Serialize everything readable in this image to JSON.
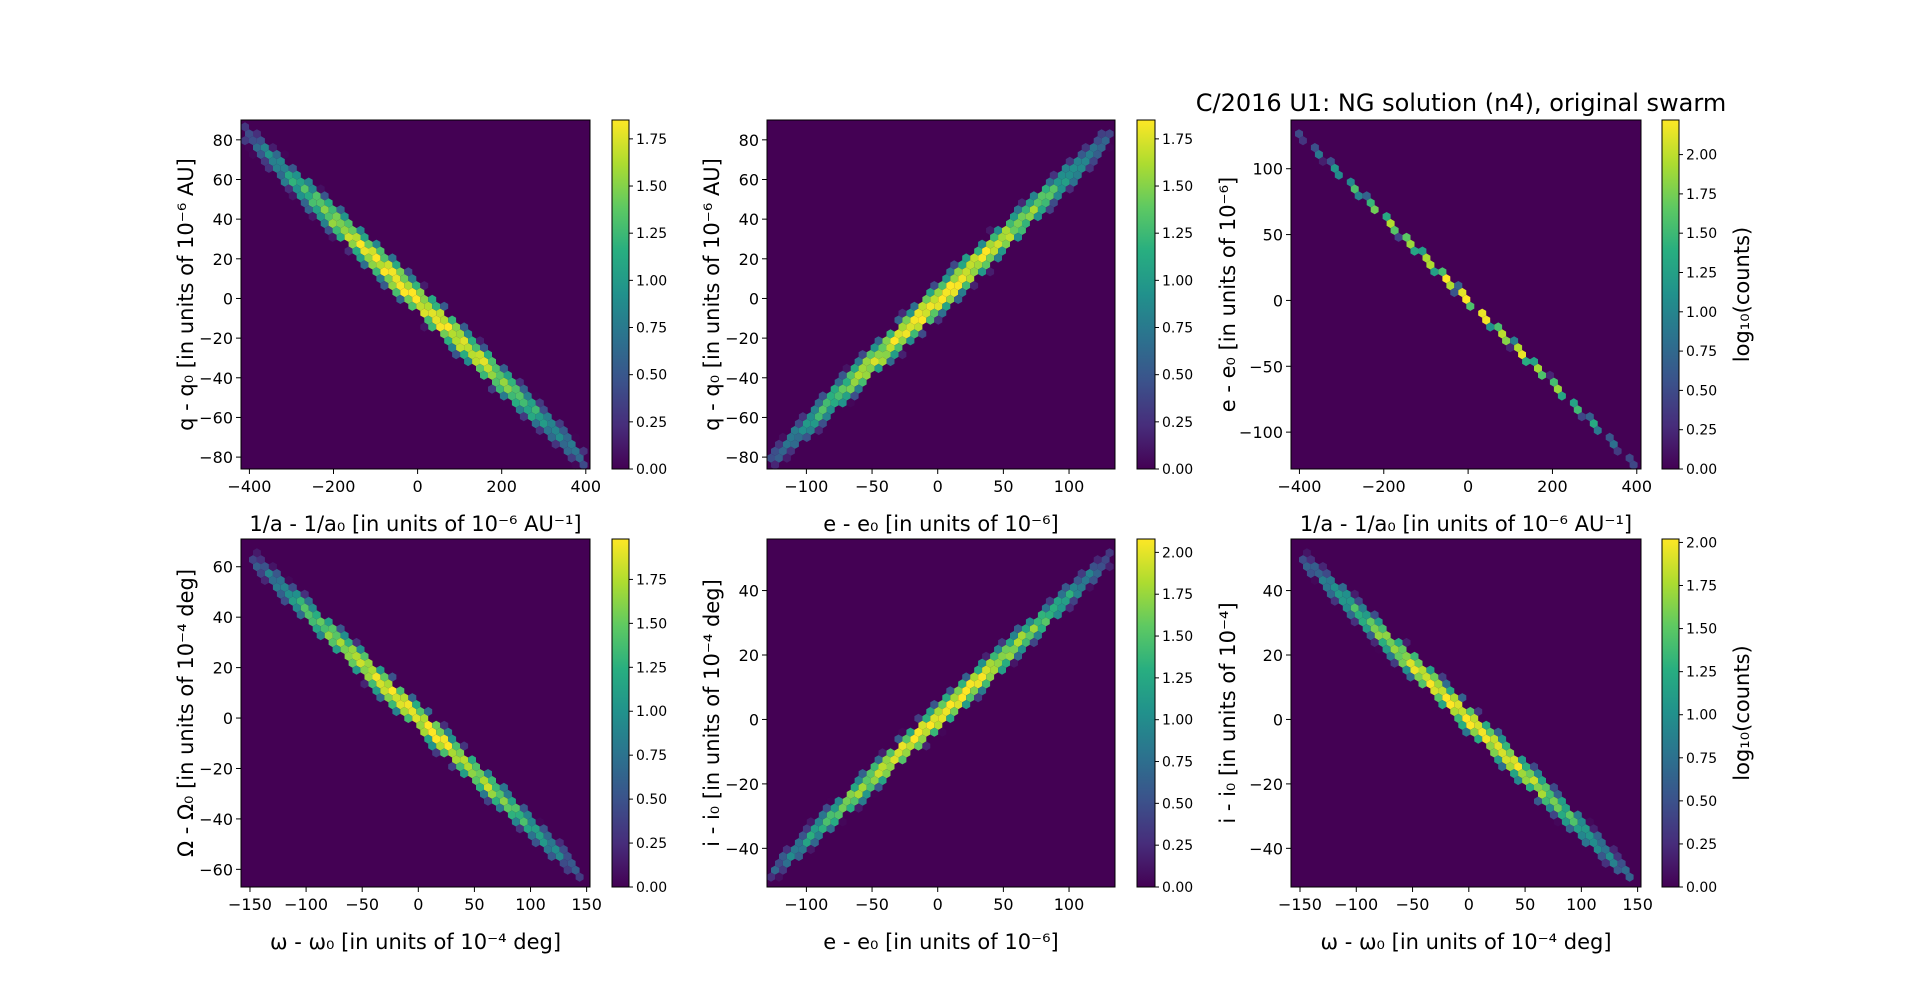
{
  "title": "C/2016 U1: NG solution (n4),  original swarm",
  "colormap": "viridis",
  "background_color": "#440154",
  "chart_data": [
    {
      "type": "hexbin",
      "xlabel": "1/a - 1/a₀ [in units of 10⁻⁶ AU⁻¹]",
      "ylabel": "q - q₀ [in units of 10⁻⁶ AU]",
      "xlim": [
        -420,
        410
      ],
      "ylim": [
        -86,
        90
      ],
      "xticks": [
        -400,
        -200,
        0,
        200,
        400
      ],
      "xticklabels": [
        "−400",
        "−200",
        "0",
        "200",
        "400"
      ],
      "yticks": [
        -80,
        -60,
        -40,
        -20,
        0,
        20,
        40,
        60,
        80
      ],
      "yticklabels": [
        "−80",
        "−60",
        "−40",
        "−20",
        "0",
        "20",
        "40",
        "60",
        "80"
      ],
      "ridge": [
        [
          -400,
          81
        ],
        [
          390,
          -80
        ]
      ],
      "ridge_width": 6,
      "clim": [
        0,
        1.85
      ],
      "cticks": [
        0,
        0.25,
        0.5,
        0.75,
        1,
        1.25,
        1.5,
        1.75
      ],
      "cticklabels": [
        "0.00",
        "0.25",
        "0.50",
        "0.75",
        "1.00",
        "1.25",
        "1.50",
        "1.75"
      ],
      "clabel": ""
    },
    {
      "type": "hexbin",
      "xlabel": "e - e₀ [in units of 10⁻⁶]",
      "ylabel": "q - q₀ [in units of 10⁻⁶ AU]",
      "xlim": [
        -130,
        135
      ],
      "ylim": [
        -86,
        90
      ],
      "xticks": [
        -100,
        -50,
        0,
        50,
        100
      ],
      "xticklabels": [
        "−100",
        "−50",
        "0",
        "50",
        "100"
      ],
      "yticks": [
        -80,
        -60,
        -40,
        -20,
        0,
        20,
        40,
        60,
        80
      ],
      "yticklabels": [
        "−80",
        "−60",
        "−40",
        "−20",
        "0",
        "20",
        "40",
        "60",
        "80"
      ],
      "ridge": [
        [
          -125,
          -80
        ],
        [
          130,
          81
        ]
      ],
      "ridge_width": 6,
      "clim": [
        0,
        1.85
      ],
      "cticks": [
        0,
        0.25,
        0.5,
        0.75,
        1,
        1.25,
        1.5,
        1.75
      ],
      "cticklabels": [
        "0.00",
        "0.25",
        "0.50",
        "0.75",
        "1.00",
        "1.25",
        "1.50",
        "1.75"
      ],
      "clabel": ""
    },
    {
      "type": "hexbin",
      "xlabel": "1/a - 1/a₀ [in units of 10⁻⁶ AU⁻¹]",
      "ylabel": "e - e₀ [in units of 10⁻⁶]",
      "xlim": [
        -420,
        410
      ],
      "ylim": [
        -128,
        137
      ],
      "xticks": [
        -400,
        -200,
        0,
        200,
        400
      ],
      "xticklabels": [
        "−400",
        "−200",
        "0",
        "200",
        "400"
      ],
      "yticks": [
        -100,
        -50,
        0,
        50,
        100
      ],
      "yticklabels": [
        "−100",
        "−50",
        "0",
        "50",
        "100"
      ],
      "ridge": [
        [
          -390,
          123
        ],
        [
          390,
          -123
        ]
      ],
      "ridge_width": 2.5,
      "clim": [
        0,
        2.22
      ],
      "cticks": [
        0,
        0.25,
        0.5,
        0.75,
        1,
        1.25,
        1.5,
        1.75,
        2
      ],
      "cticklabels": [
        "0.00",
        "0.25",
        "0.50",
        "0.75",
        "1.00",
        "1.25",
        "1.50",
        "1.75",
        "2.00"
      ],
      "clabel": "log₁₀(counts)"
    },
    {
      "type": "hexbin",
      "xlabel": "ω - ω₀ [in units of 10⁻⁴ deg]",
      "ylabel": "Ω - Ω₀ [in units of 10⁻⁴ deg]",
      "xlim": [
        -158,
        153
      ],
      "ylim": [
        -67,
        71
      ],
      "xticks": [
        -150,
        -100,
        -50,
        0,
        50,
        100,
        150
      ],
      "xticklabels": [
        "−150",
        "−100",
        "−50",
        "0",
        "50",
        "100",
        "150"
      ],
      "yticks": [
        -60,
        -40,
        -20,
        0,
        20,
        40,
        60
      ],
      "yticklabels": [
        "−60",
        "−40",
        "−20",
        "0",
        "20",
        "40",
        "60"
      ],
      "ridge": [
        [
          -145,
          62
        ],
        [
          140,
          -60
        ]
      ],
      "ridge_width": 4,
      "clim": [
        0,
        1.98
      ],
      "cticks": [
        0,
        0.25,
        0.5,
        0.75,
        1,
        1.25,
        1.5,
        1.75
      ],
      "cticklabels": [
        "0.00",
        "0.25",
        "0.50",
        "0.75",
        "1.00",
        "1.25",
        "1.50",
        "1.75"
      ],
      "clabel": ""
    },
    {
      "type": "hexbin",
      "xlabel": "e - e₀ [in units of 10⁻⁶]",
      "ylabel": "i - i₀ [in units of 10⁻⁴ deg]",
      "xlim": [
        -130,
        135
      ],
      "ylim": [
        -52,
        56
      ],
      "xticks": [
        -100,
        -50,
        0,
        50,
        100
      ],
      "xticklabels": [
        "−100",
        "−50",
        "0",
        "50",
        "100"
      ],
      "yticks": [
        -40,
        -20,
        0,
        20,
        40
      ],
      "yticklabels": [
        "−40",
        "−20",
        "0",
        "20",
        "40"
      ],
      "ridge": [
        [
          -125,
          -47
        ],
        [
          128,
          49
        ]
      ],
      "ridge_width": 3,
      "clim": [
        0,
        2.08
      ],
      "cticks": [
        0,
        0.25,
        0.5,
        0.75,
        1,
        1.25,
        1.5,
        1.75,
        2
      ],
      "cticklabels": [
        "0.00",
        "0.25",
        "0.50",
        "0.75",
        "1.00",
        "1.25",
        "1.50",
        "1.75",
        "2.00"
      ],
      "clabel": ""
    },
    {
      "type": "hexbin",
      "xlabel": "ω - ω₀ [in units of 10⁻⁴ deg]",
      "ylabel": "i - i₀ [in units of 10⁻⁴]",
      "xlim": [
        -158,
        153
      ],
      "ylim": [
        -52,
        56
      ],
      "xticks": [
        -150,
        -100,
        -50,
        0,
        50,
        100,
        150
      ],
      "xticklabels": [
        "−150",
        "−100",
        "−50",
        "0",
        "50",
        "100",
        "150"
      ],
      "yticks": [
        -40,
        -20,
        0,
        20,
        40
      ],
      "yticklabels": [
        "−40",
        "−20",
        "0",
        "20",
        "40"
      ],
      "ridge": [
        [
          -145,
          49
        ],
        [
          142,
          -48
        ]
      ],
      "ridge_width": 3,
      "clim": [
        0,
        2.02
      ],
      "cticks": [
        0,
        0.25,
        0.5,
        0.75,
        1,
        1.25,
        1.5,
        1.75,
        2
      ],
      "cticklabels": [
        "0.00",
        "0.25",
        "0.50",
        "0.75",
        "1.00",
        "1.25",
        "1.50",
        "1.75",
        "2.00"
      ],
      "clabel": "log₁₀(counts)"
    }
  ]
}
